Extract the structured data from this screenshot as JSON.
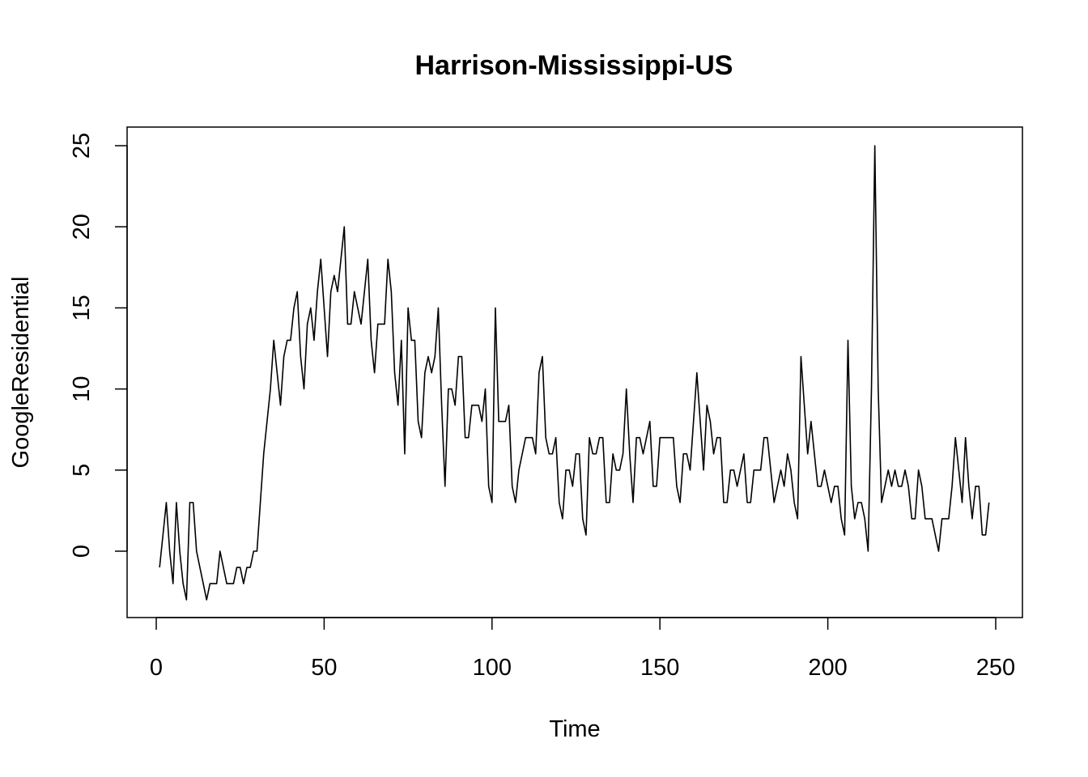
{
  "chart_data": {
    "type": "line",
    "title": "Harrison-Mississippi-US",
    "xlabel": "Time",
    "ylabel": "GoogleResidential",
    "xlim": [
      1,
      248
    ],
    "ylim": [
      -3,
      25
    ],
    "x_ticks": [
      0,
      50,
      100,
      150,
      200,
      250
    ],
    "y_ticks": [
      0,
      5,
      10,
      15,
      20,
      25
    ],
    "grid": false,
    "legend": "none",
    "line_color": "#000000",
    "x_start": 1,
    "series": [
      {
        "values": [
          -1,
          1,
          3,
          0,
          -2,
          3,
          0,
          -2,
          -3,
          3,
          3,
          0,
          -1,
          -2,
          -3,
          -2,
          -2,
          -2,
          0,
          -1,
          -2,
          -2,
          -2,
          -1,
          -1,
          -2,
          -1,
          -1,
          0,
          0,
          3,
          6,
          8,
          10,
          13,
          11,
          9,
          12,
          13,
          13,
          15,
          16,
          12,
          10,
          14,
          15,
          13,
          16,
          18,
          15,
          12,
          16,
          17,
          16,
          18,
          20,
          14,
          14,
          16,
          15,
          14,
          16,
          18,
          13,
          11,
          14,
          14,
          14,
          18,
          16,
          11,
          9,
          13,
          6,
          15,
          13,
          13,
          8,
          7,
          11,
          12,
          11,
          12,
          15,
          9,
          4,
          10,
          10,
          9,
          12,
          12,
          7,
          7,
          9,
          9,
          9,
          8,
          10,
          4,
          3,
          15,
          8,
          8,
          8,
          9,
          4,
          3,
          5,
          6,
          7,
          7,
          7,
          6,
          11,
          12,
          7,
          6,
          6,
          7,
          3,
          2,
          5,
          5,
          4,
          6,
          6,
          2,
          1,
          7,
          6,
          6,
          7,
          7,
          3,
          3,
          6,
          5,
          5,
          6,
          10,
          6,
          3,
          7,
          7,
          6,
          7,
          8,
          4,
          4,
          7,
          7,
          7,
          7,
          7,
          4,
          3,
          6,
          6,
          5,
          8,
          11,
          8,
          5,
          9,
          8,
          6,
          7,
          7,
          3,
          3,
          5,
          5,
          4,
          5,
          6,
          3,
          3,
          5,
          5,
          5,
          7,
          7,
          5,
          3,
          4,
          5,
          4,
          6,
          5,
          3,
          2,
          12,
          9,
          6,
          8,
          6,
          4,
          4,
          5,
          4,
          3,
          4,
          4,
          2,
          1,
          13,
          4,
          2,
          3,
          3,
          2,
          0,
          10,
          25,
          10,
          3,
          4,
          5,
          4,
          5,
          4,
          4,
          5,
          4,
          2,
          2,
          5,
          4,
          2,
          2,
          2,
          1,
          0,
          2,
          2,
          2,
          4,
          7,
          5,
          3,
          7,
          4,
          2,
          4,
          4,
          1,
          1,
          3
        ]
      }
    ]
  }
}
